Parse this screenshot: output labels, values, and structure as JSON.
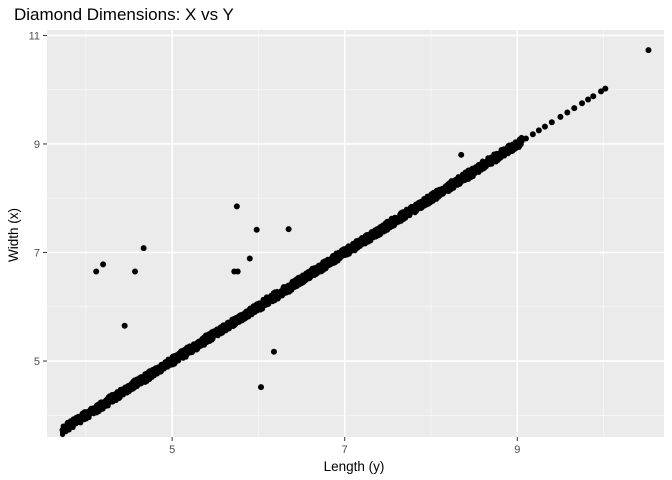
{
  "chart_data": {
    "type": "scatter",
    "title": "Diamond Dimensions: X vs Y",
    "xlabel": "Length (y)",
    "ylabel": "Width (x)",
    "xlim": [
      3.55,
      10.7
    ],
    "ylim": [
      3.6,
      11.1
    ],
    "x_ticks": [
      5,
      7,
      9
    ],
    "y_ticks": [
      5,
      7,
      9,
      11
    ],
    "x_tick_labels": [
      "5",
      "7",
      "9"
    ],
    "y_tick_labels": [
      "5",
      "7",
      "9",
      "11"
    ],
    "grid": true,
    "legend": "none",
    "colors": {
      "panel": "#ebebeb",
      "grid_major": "#ffffff",
      "grid_minor": "#f7f7f7",
      "point": "#000000",
      "tick": "#333333"
    },
    "series": [
      {
        "x": [
          3.73,
          3.78,
          3.84,
          3.9,
          3.95,
          4.02,
          4.08,
          4.15,
          4.22,
          4.3,
          4.38,
          4.45,
          4.53,
          4.6,
          4.68,
          4.75,
          4.83,
          4.9,
          4.98,
          5.05,
          5.13,
          5.2,
          5.28,
          5.35,
          5.43,
          5.5,
          5.58,
          5.65,
          5.73,
          5.8,
          5.88,
          5.95,
          6.03,
          6.1,
          6.18,
          6.25,
          6.33,
          6.4,
          6.48,
          6.55,
          6.63,
          6.7,
          6.78,
          6.85,
          6.93,
          7.0,
          7.08,
          7.15,
          7.23,
          7.3,
          7.38,
          7.45,
          7.53,
          7.6,
          7.68,
          7.75,
          7.83,
          7.9,
          7.98,
          8.05,
          8.13,
          8.2,
          8.28,
          8.35,
          8.43,
          8.5,
          8.58,
          8.65,
          8.73,
          8.8,
          8.88,
          8.95,
          9.0,
          9.05,
          9.1,
          9.18,
          9.25,
          9.32,
          9.4,
          9.5,
          9.58,
          9.66,
          9.75,
          9.82,
          9.88,
          9.97,
          10.02,
          10.52,
          4.12,
          4.2,
          4.57,
          4.67,
          4.45,
          5.75,
          5.9,
          5.76,
          5.72,
          5.98,
          6.35,
          6.18,
          6.03,
          8.35
        ],
        "y": [
          3.73,
          3.78,
          3.84,
          3.9,
          3.95,
          4.02,
          4.08,
          4.15,
          4.22,
          4.3,
          4.38,
          4.45,
          4.53,
          4.6,
          4.68,
          4.75,
          4.83,
          4.9,
          4.98,
          5.05,
          5.13,
          5.2,
          5.28,
          5.35,
          5.43,
          5.5,
          5.58,
          5.65,
          5.73,
          5.8,
          5.88,
          5.95,
          6.03,
          6.1,
          6.18,
          6.25,
          6.33,
          6.4,
          6.48,
          6.55,
          6.63,
          6.7,
          6.78,
          6.85,
          6.93,
          7.0,
          7.08,
          7.15,
          7.23,
          7.3,
          7.38,
          7.45,
          7.53,
          7.6,
          7.68,
          7.75,
          7.83,
          7.9,
          7.98,
          8.05,
          8.13,
          8.2,
          8.28,
          8.35,
          8.43,
          8.5,
          8.58,
          8.65,
          8.73,
          8.8,
          8.88,
          8.95,
          9.0,
          9.05,
          9.1,
          9.18,
          9.25,
          9.32,
          9.4,
          9.5,
          9.58,
          9.66,
          9.75,
          9.82,
          9.88,
          9.97,
          10.02,
          10.73,
          6.65,
          6.78,
          6.65,
          7.08,
          5.65,
          7.85,
          6.89,
          6.65,
          6.65,
          7.42,
          7.43,
          5.17,
          4.52,
          8.8
        ]
      }
    ]
  }
}
